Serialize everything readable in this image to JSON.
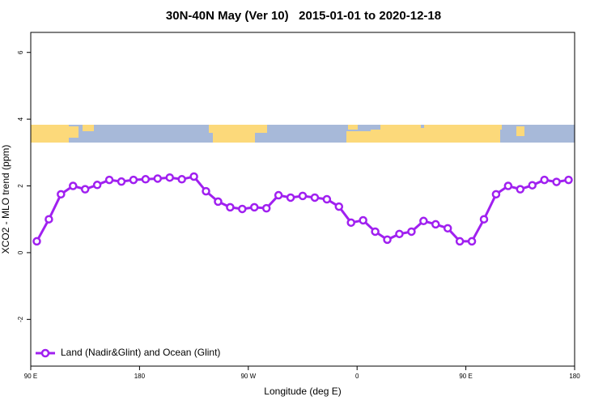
{
  "chart_data": {
    "type": "line",
    "title": "30N-40N May (Ver 10)   2015-01-01 to 2020-12-18",
    "x_label": "Longitude (deg E)",
    "y_label": "XCO2 - MLO trend (ppm)",
    "x": [
      95,
      105,
      115,
      125,
      135,
      145,
      155,
      165,
      175,
      185,
      195,
      205,
      215,
      225,
      235,
      245,
      255,
      265,
      275,
      285,
      295,
      305,
      315,
      325,
      335,
      345,
      355,
      365,
      375,
      385,
      395,
      405,
      415,
      425,
      435,
      445,
      455,
      465,
      475,
      485,
      495,
      505,
      515,
      525,
      535
    ],
    "series": [
      {
        "name": "Land (Nadir&Glint) and Ocean (Glint)",
        "color": "#a020f0",
        "values": [
          0.34,
          1.0,
          1.75,
          2.0,
          1.9,
          2.03,
          2.18,
          2.13,
          2.18,
          2.2,
          2.22,
          2.25,
          2.2,
          2.28,
          1.84,
          1.53,
          1.36,
          1.31,
          1.36,
          1.33,
          1.72,
          1.65,
          1.7,
          1.65,
          1.6,
          1.38,
          0.9,
          0.97,
          0.63,
          0.39,
          0.56,
          0.63,
          0.95,
          0.85,
          0.73,
          0.34,
          0.34,
          1.0,
          1.75,
          2.0,
          1.9,
          2.02,
          2.18,
          2.12,
          2.18
        ]
      }
    ],
    "xlim": [
      90,
      540
    ],
    "xticks": [
      {
        "value": 90,
        "label": "90 E"
      },
      180,
      {
        "value": 270,
        "label": "90 W"
      },
      {
        "value": 360,
        "label": "0"
      },
      {
        "value": 450,
        "label": "90 E"
      },
      {
        "value": 540,
        "label": "180"
      }
    ],
    "ylim": [
      -3.4,
      6.6
    ],
    "yticks": [
      -2,
      0,
      2,
      4,
      6
    ],
    "legend": "bottom-left"
  }
}
